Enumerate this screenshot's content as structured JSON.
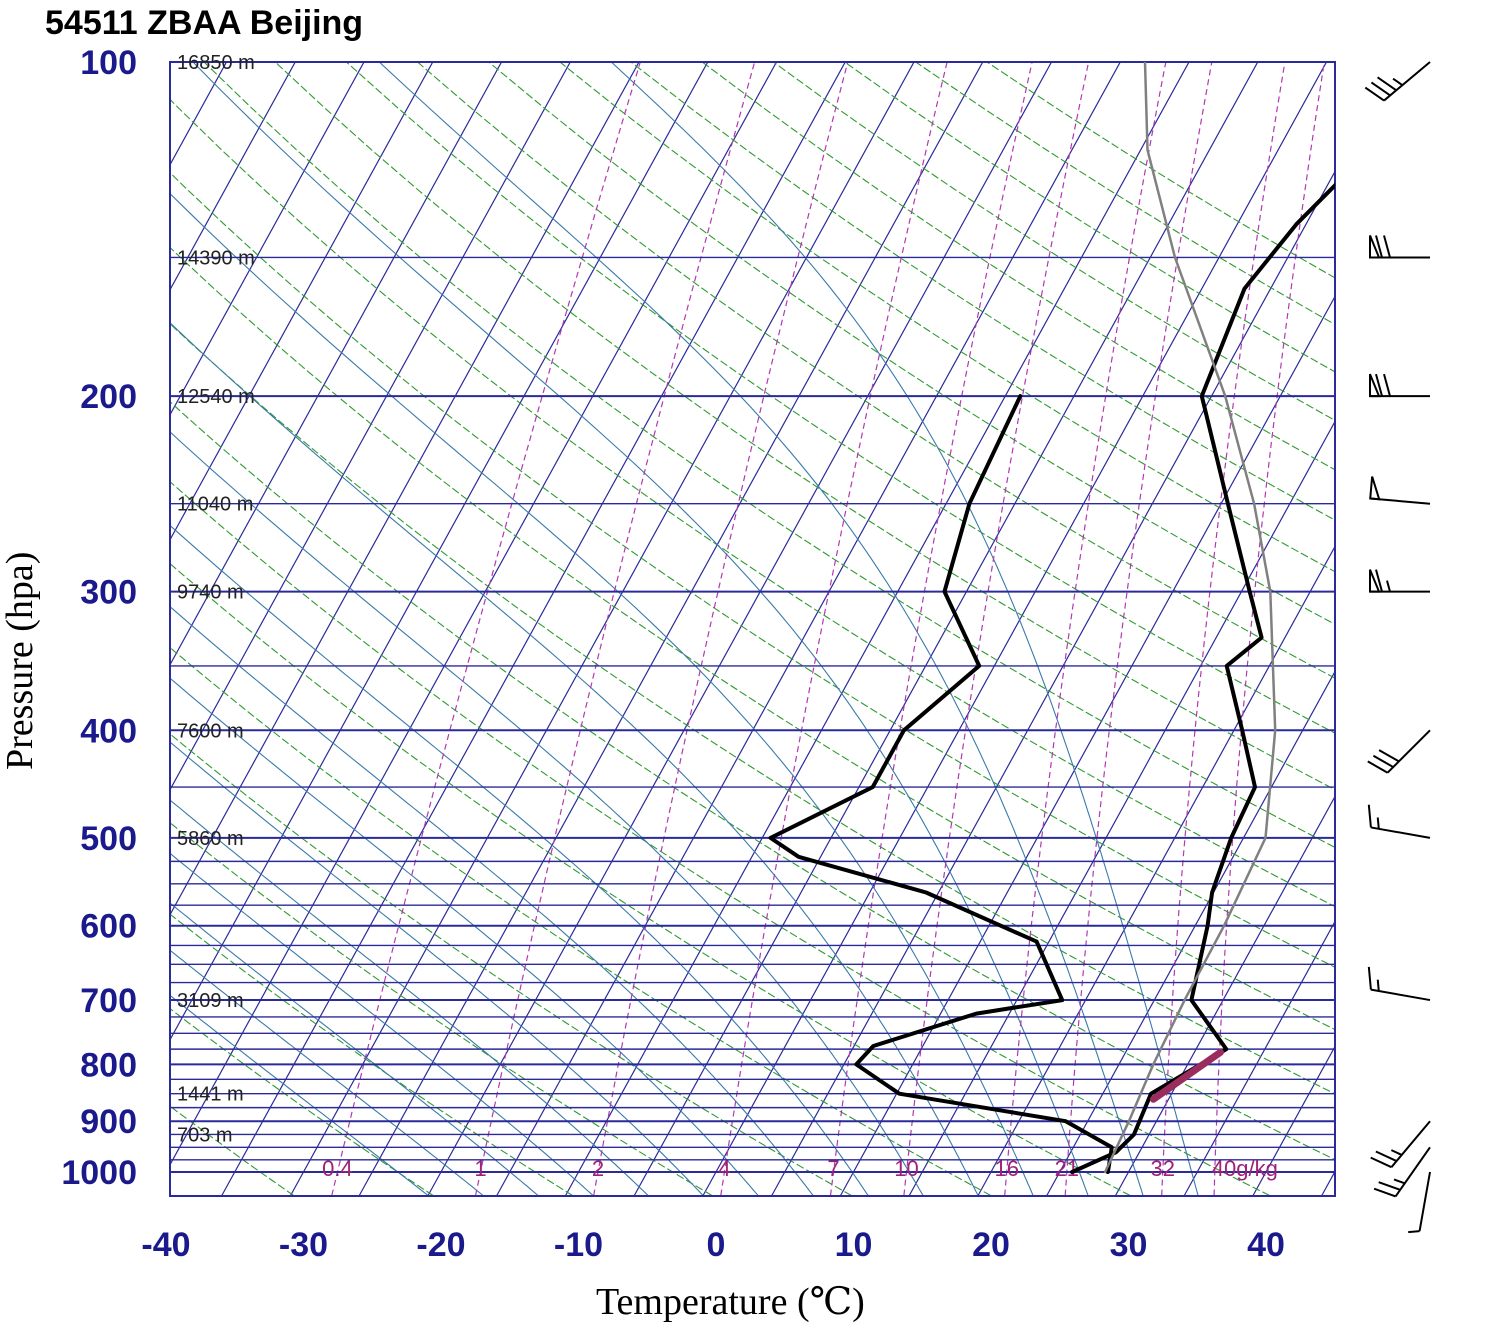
{
  "chart_data": {
    "type": "skew-t log-p sounding",
    "title": "54511 ZBAA Beijing",
    "xlabel": "Temperature (℃)",
    "ylabel": "Pressure (hpa)",
    "xlim": [
      -40,
      45
    ],
    "ylim_pressure": [
      1000,
      100
    ],
    "x_ticks": [
      -40,
      -30,
      -20,
      -10,
      0,
      10,
      20,
      30,
      40
    ],
    "y_ticks": [
      100,
      200,
      300,
      400,
      500,
      600,
      700,
      800,
      900,
      1000
    ],
    "height_labels": [
      {
        "p": 100,
        "text": "16850 m"
      },
      {
        "p": 150,
        "text": "14390 m"
      },
      {
        "p": 200,
        "text": "12540 m"
      },
      {
        "p": 250,
        "text": "11040 m"
      },
      {
        "p": 300,
        "text": "9740 m"
      },
      {
        "p": 400,
        "text": "7600 m"
      },
      {
        "p": 500,
        "text": "5860 m"
      },
      {
        "p": 700,
        "text": "3109 m"
      },
      {
        "p": 850,
        "text": "1441 m"
      },
      {
        "p": 925,
        "text": "703 m"
      }
    ],
    "mixing_ratio_labels": [
      "0.4",
      "1",
      "2",
      "4",
      "7",
      "10",
      "16",
      "21",
      "32",
      "40g/kg"
    ],
    "series": [
      {
        "key": "temperature",
        "color": "#000000",
        "points": [
          [
            1000,
            25.9
          ],
          [
            960,
            28.3
          ],
          [
            925,
            28.9
          ],
          [
            850,
            28.5
          ],
          [
            775,
            32.2
          ],
          [
            700,
            27.7
          ],
          [
            600,
            25.9
          ],
          [
            560,
            24.9
          ],
          [
            500,
            24.1
          ],
          [
            450,
            23.8
          ],
          [
            400,
            20.6
          ],
          [
            350,
            16.9
          ],
          [
            330,
            18.3
          ],
          [
            300,
            15.6
          ],
          [
            250,
            10.5
          ],
          [
            200,
            4.3
          ],
          [
            160,
            3.1
          ],
          [
            140,
            4.3
          ],
          [
            120,
            6.7
          ],
          [
            110,
            8.1
          ],
          [
            100,
            9.0
          ]
        ]
      },
      {
        "key": "dewpoint",
        "color": "#000000",
        "points": [
          [
            1000,
            28.5
          ],
          [
            950,
            27.8
          ],
          [
            900,
            23.4
          ],
          [
            850,
            10.2
          ],
          [
            800,
            5.9
          ],
          [
            770,
            6.4
          ],
          [
            720,
            12.6
          ],
          [
            700,
            18.3
          ],
          [
            620,
            14.1
          ],
          [
            560,
            4.1
          ],
          [
            520,
            -6.6
          ],
          [
            500,
            -9.4
          ],
          [
            450,
            -4.0
          ],
          [
            400,
            -4.0
          ],
          [
            350,
            -1.1
          ],
          [
            300,
            -6.6
          ],
          [
            250,
            -8.3
          ],
          [
            200,
            -8.9
          ]
        ]
      },
      {
        "key": "parcel",
        "color": "#808080",
        "points": [
          [
            1000,
            28.3
          ],
          [
            900,
            28.0
          ],
          [
            800,
            27.5
          ],
          [
            700,
            27.2
          ],
          [
            600,
            27.1
          ],
          [
            500,
            26.6
          ],
          [
            400,
            23.0
          ],
          [
            300,
            17.1
          ],
          [
            250,
            12.4
          ],
          [
            200,
            6.0
          ],
          [
            150,
            -3.2
          ],
          [
            120,
            -9.5
          ],
          [
            100,
            -13.2
          ]
        ]
      },
      {
        "key": "lcl-segment",
        "color": "#9b2d5e",
        "points": [
          [
            780,
            31.9
          ],
          [
            860,
            28.9
          ]
        ]
      }
    ],
    "wind_barbs": [
      {
        "p": 1000,
        "speed_kt": 5,
        "dir_deg": 190
      },
      {
        "p": 950,
        "speed_kt": 25,
        "dir_deg": 215
      },
      {
        "p": 900,
        "speed_kt": 25,
        "dir_deg": 220
      },
      {
        "p": 700,
        "speed_kt": 15,
        "dir_deg": 280
      },
      {
        "p": 500,
        "speed_kt": 15,
        "dir_deg": 280
      },
      {
        "p": 400,
        "speed_kt": 30,
        "dir_deg": 225
      },
      {
        "p": 300,
        "speed_kt": 65,
        "dir_deg": 270
      },
      {
        "p": 250,
        "speed_kt": 50,
        "dir_deg": 275
      },
      {
        "p": 200,
        "speed_kt": 70,
        "dir_deg": 270
      },
      {
        "p": 150,
        "speed_kt": 70,
        "dir_deg": 270
      },
      {
        "p": 100,
        "speed_kt": 35,
        "dir_deg": 230
      }
    ],
    "colors": {
      "isobar": "#2a2a9a",
      "isotherm": "#2a2a9a",
      "dry_adiabat": "#2f9a2f",
      "moist_adiabat": "#3a7aaa",
      "mixing_ratio": "#b03ab0",
      "frame": "#2a2a9a"
    }
  }
}
